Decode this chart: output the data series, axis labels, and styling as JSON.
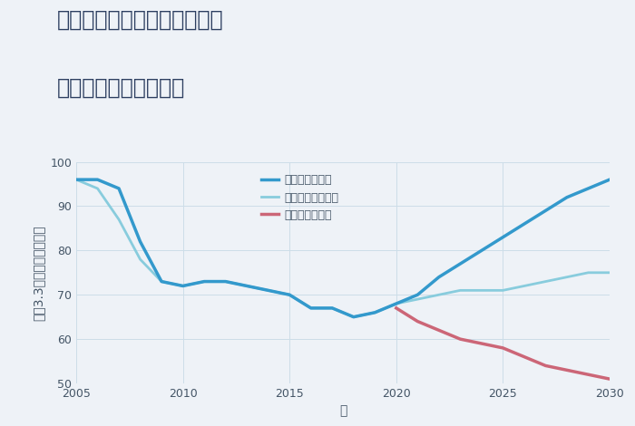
{
  "title_line1": "三重県津市安濃町東観音寺の",
  "title_line2": "中古戸建ての価格推移",
  "xlabel": "年",
  "ylabel": "坪（3.3㎡）単価（万円）",
  "background_color": "#eef2f7",
  "plot_background": "#eef2f7",
  "xlim": [
    2005,
    2030
  ],
  "ylim": [
    50,
    100
  ],
  "yticks": [
    50,
    60,
    70,
    80,
    90,
    100
  ],
  "xticks": [
    2005,
    2010,
    2015,
    2020,
    2025,
    2030
  ],
  "good_scenario": {
    "label": "グッドシナリオ",
    "color": "#3399cc",
    "linewidth": 2.5,
    "x": [
      2005,
      2006,
      2007,
      2008,
      2009,
      2010,
      2011,
      2012,
      2013,
      2014,
      2015,
      2016,
      2017,
      2018,
      2019,
      2020,
      2021,
      2022,
      2023,
      2024,
      2025,
      2026,
      2027,
      2028,
      2029,
      2030
    ],
    "y": [
      96,
      96,
      94,
      82,
      73,
      72,
      73,
      73,
      72,
      71,
      70,
      67,
      67,
      65,
      66,
      68,
      70,
      74,
      77,
      80,
      83,
      86,
      89,
      92,
      94,
      96
    ]
  },
  "bad_scenario": {
    "label": "バッドシナリオ",
    "color": "#cc6677",
    "linewidth": 2.5,
    "x": [
      2020,
      2021,
      2022,
      2023,
      2024,
      2025,
      2026,
      2027,
      2028,
      2029,
      2030
    ],
    "y": [
      67,
      64,
      62,
      60,
      59,
      58,
      56,
      54,
      53,
      52,
      51
    ]
  },
  "normal_scenario": {
    "label": "ノーマルシナリオ",
    "color": "#88ccdd",
    "linewidth": 2.0,
    "x": [
      2005,
      2006,
      2007,
      2008,
      2009,
      2010,
      2011,
      2012,
      2013,
      2014,
      2015,
      2016,
      2017,
      2018,
      2019,
      2020,
      2021,
      2022,
      2023,
      2024,
      2025,
      2026,
      2027,
      2028,
      2029,
      2030
    ],
    "y": [
      96,
      94,
      87,
      78,
      73,
      72,
      73,
      73,
      72,
      71,
      70,
      67,
      67,
      65,
      66,
      68,
      69,
      70,
      71,
      71,
      71,
      72,
      73,
      74,
      75,
      75
    ]
  },
  "title_color": "#2c3e60",
  "tick_color": "#445566",
  "grid_color": "#ccdde8",
  "legend_fontsize": 9,
  "title_fontsize": 17,
  "axis_label_fontsize": 10
}
